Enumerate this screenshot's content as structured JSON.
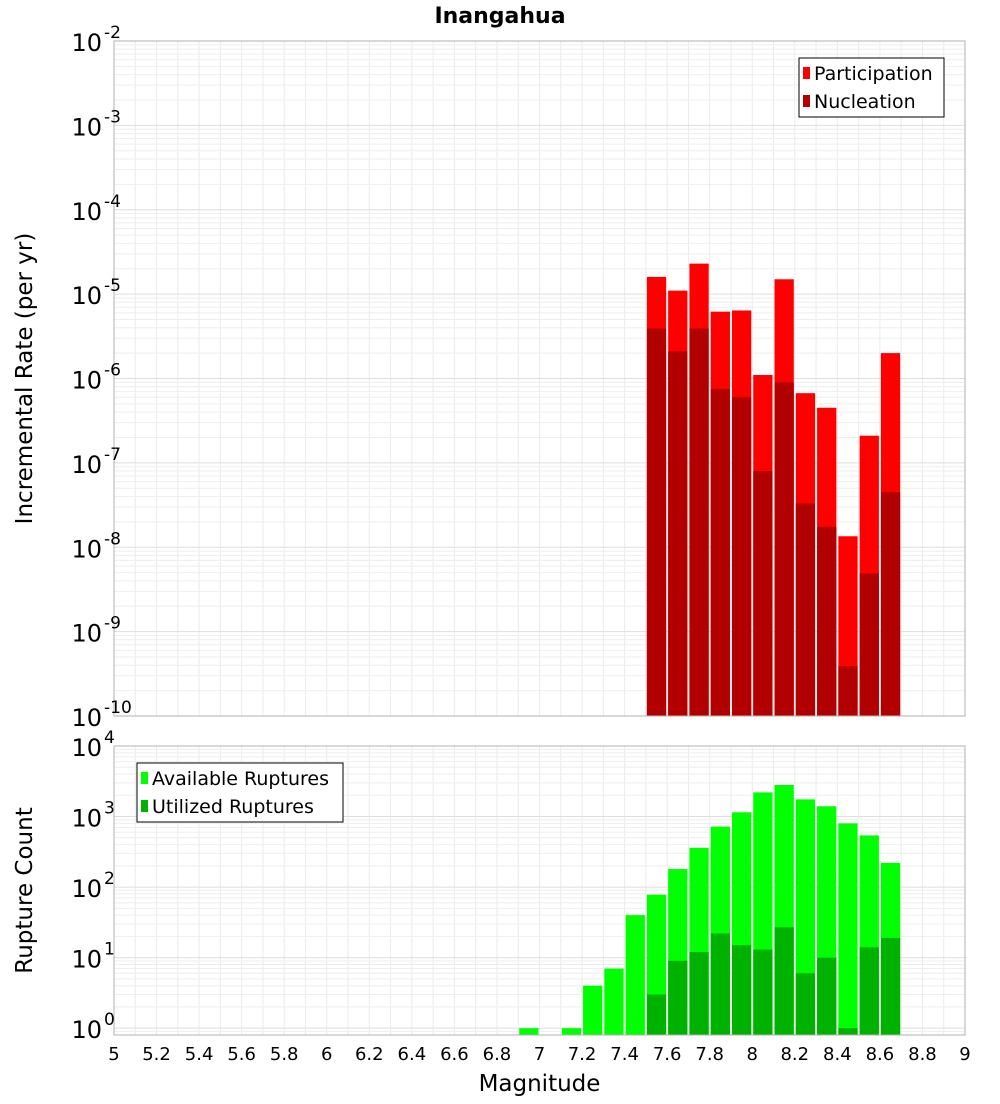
{
  "title": "Inangahua",
  "chart_data": [
    {
      "type": "bar",
      "yscale": "log",
      "ylabel": "Incremental Rate (per yr)",
      "xlabel": "",
      "xlim": [
        5,
        9
      ],
      "ylim": [
        1e-10,
        0.01
      ],
      "bin_width": 0.1,
      "y_tick_exponents": [
        -10,
        -9,
        -8,
        -7,
        -6,
        -5,
        -4,
        -3,
        -2
      ],
      "legend": {
        "position": "top-right"
      },
      "series": [
        {
          "name": "Participation",
          "color": "#ff0000",
          "x": [
            7.55,
            7.65,
            7.75,
            7.85,
            7.95,
            8.05,
            8.15,
            8.25,
            8.35,
            8.45,
            8.55,
            8.65
          ],
          "values": [
            1.6e-05,
            1.1e-05,
            2.3e-05,
            6.2e-06,
            6.4e-06,
            1.1e-06,
            1.5e-05,
            6.7e-07,
            4.5e-07,
            1.35e-08,
            2.1e-07,
            2e-06
          ]
        },
        {
          "name": "Nucleation",
          "color": "#b20000",
          "x": [
            7.55,
            7.65,
            7.75,
            7.85,
            7.95,
            8.05,
            8.15,
            8.25,
            8.35,
            8.45,
            8.55,
            8.65
          ],
          "values": [
            3.9e-06,
            2.1e-06,
            3.9e-06,
            7.5e-07,
            6e-07,
            8e-08,
            9e-07,
            3.3e-08,
            1.75e-08,
            3.9e-10,
            4.9e-09,
            4.5e-08
          ]
        }
      ]
    },
    {
      "type": "bar",
      "yscale": "log",
      "ylabel": "Rupture Count",
      "xlabel": "Magnitude",
      "xlim": [
        5,
        9
      ],
      "ylim": [
        0.8,
        10000
      ],
      "bin_width": 0.1,
      "y_tick_exponents": [
        0,
        1,
        2,
        3,
        4
      ],
      "x_ticks": [
        "5",
        "5.2",
        "5.4",
        "5.6",
        "5.8",
        "6",
        "6.2",
        "6.4",
        "6.6",
        "6.8",
        "7",
        "7.2",
        "7.4",
        "7.6",
        "7.8",
        "8",
        "8.2",
        "8.4",
        "8.6",
        "8.8",
        "9"
      ],
      "legend": {
        "position": "top-left"
      },
      "series": [
        {
          "name": "Available Ruptures",
          "color": "#00ff00",
          "x": [
            6.95,
            7.15,
            7.25,
            7.35,
            7.45,
            7.55,
            7.65,
            7.75,
            7.85,
            7.95,
            8.05,
            8.15,
            8.25,
            8.35,
            8.45,
            8.55,
            8.65
          ],
          "values": [
            1,
            1,
            4,
            7,
            40,
            78,
            180,
            360,
            720,
            1150,
            2200,
            2800,
            1750,
            1400,
            800,
            540,
            220
          ]
        },
        {
          "name": "Utilized Ruptures",
          "color": "#00b200",
          "x": [
            7.55,
            7.65,
            7.75,
            7.85,
            7.95,
            8.05,
            8.15,
            8.25,
            8.35,
            8.45,
            8.55,
            8.65
          ],
          "values": [
            3,
            9,
            12,
            22,
            15,
            13,
            27,
            6,
            10,
            1,
            14,
            19
          ]
        }
      ]
    }
  ]
}
